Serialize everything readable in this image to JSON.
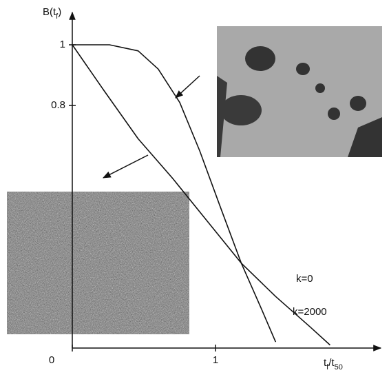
{
  "chart_data": {
    "type": "line",
    "ylabel": [
      {
        "text": "B(t",
        "sub": false
      },
      {
        "text": "f",
        "sub": true
      },
      {
        "text": ")",
        "sub": false
      }
    ],
    "xlabel": [
      {
        "text": "t",
        "sub": false
      },
      {
        "text": "f",
        "sub": true
      },
      {
        "text": "/t",
        "sub": false
      },
      {
        "text": "50",
        "sub": true
      }
    ],
    "xlim": [
      0,
      2.12
    ],
    "ylim": [
      0,
      1.07
    ],
    "xticks": [
      0,
      1
    ],
    "yticks": [
      0.8,
      1
    ],
    "series": [
      {
        "name": "k=0",
        "color": "#111111",
        "x": [
          0,
          0.26,
          0.46,
          0.6,
          0.75,
          0.89,
          1.03,
          1.18,
          1.32,
          1.42
        ],
        "values": [
          1,
          1,
          0.98,
          0.92,
          0.81,
          0.65,
          0.47,
          0.28,
          0.13,
          0.02
        ]
      },
      {
        "name": "k=2000",
        "color": "#111111",
        "x": [
          0,
          0.22,
          0.46,
          0.7,
          0.94,
          1.18,
          1.42,
          1.66,
          1.8
        ],
        "values": [
          1,
          0.85,
          0.69,
          0.56,
          0.42,
          0.28,
          0.17,
          0.07,
          0.01
        ]
      }
    ]
  }
}
